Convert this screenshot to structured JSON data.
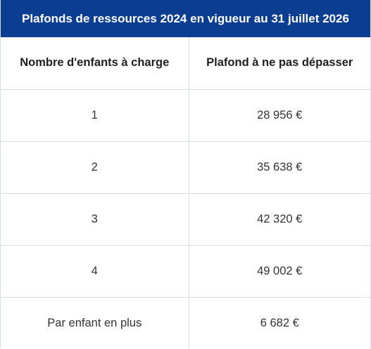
{
  "caption": "Plafonds de ressources 2024 en vigueur au 31 juillet 2026",
  "headers": {
    "col1": "Nombre d'enfants à charge",
    "col2": "Plafond à ne pas dépasser"
  },
  "rows": [
    {
      "children": "1",
      "ceiling": "28 956 €"
    },
    {
      "children": "2",
      "ceiling": "35 638 €"
    },
    {
      "children": "3",
      "ceiling": "42 320 €"
    },
    {
      "children": "4",
      "ceiling": "49 002 €"
    },
    {
      "children": "Par enfant en plus",
      "ceiling": "6 682 €"
    }
  ],
  "colors": {
    "caption_background": "#0b3d91",
    "caption_text": "#ffffff",
    "border": "#d7dde8"
  }
}
